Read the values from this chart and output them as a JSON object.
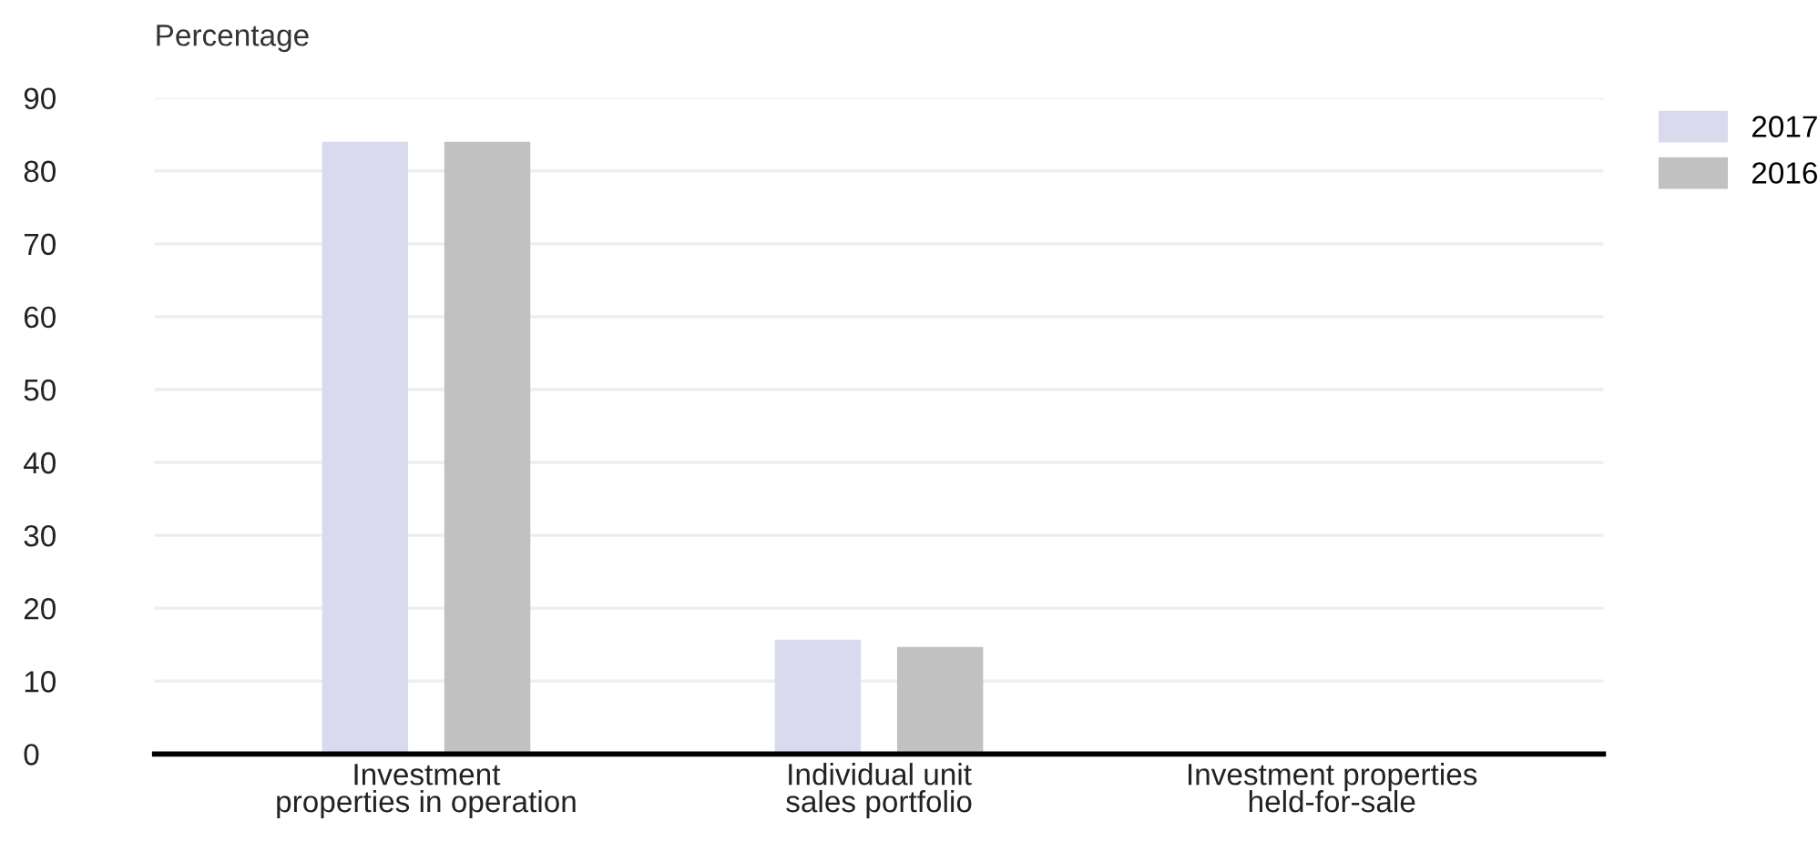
{
  "chart_data": {
    "type": "bar",
    "ylabel": "Percentage",
    "categories": [
      "Investment\nproperties in operation",
      "Individual unit\nsales portfolio",
      "Investment properties\nheld-for-sale"
    ],
    "series": [
      {
        "name": "2017",
        "color": "#dadaee",
        "values": [
          84,
          15.7,
          0
        ]
      },
      {
        "name": "2016",
        "color": "#c1c1c1",
        "values": [
          84,
          14.7,
          0
        ]
      }
    ],
    "ylim": [
      0,
      90
    ],
    "yticks": [
      0,
      10,
      20,
      30,
      40,
      50,
      60,
      70,
      80,
      90
    ],
    "grid": "y",
    "legend": "top right"
  }
}
